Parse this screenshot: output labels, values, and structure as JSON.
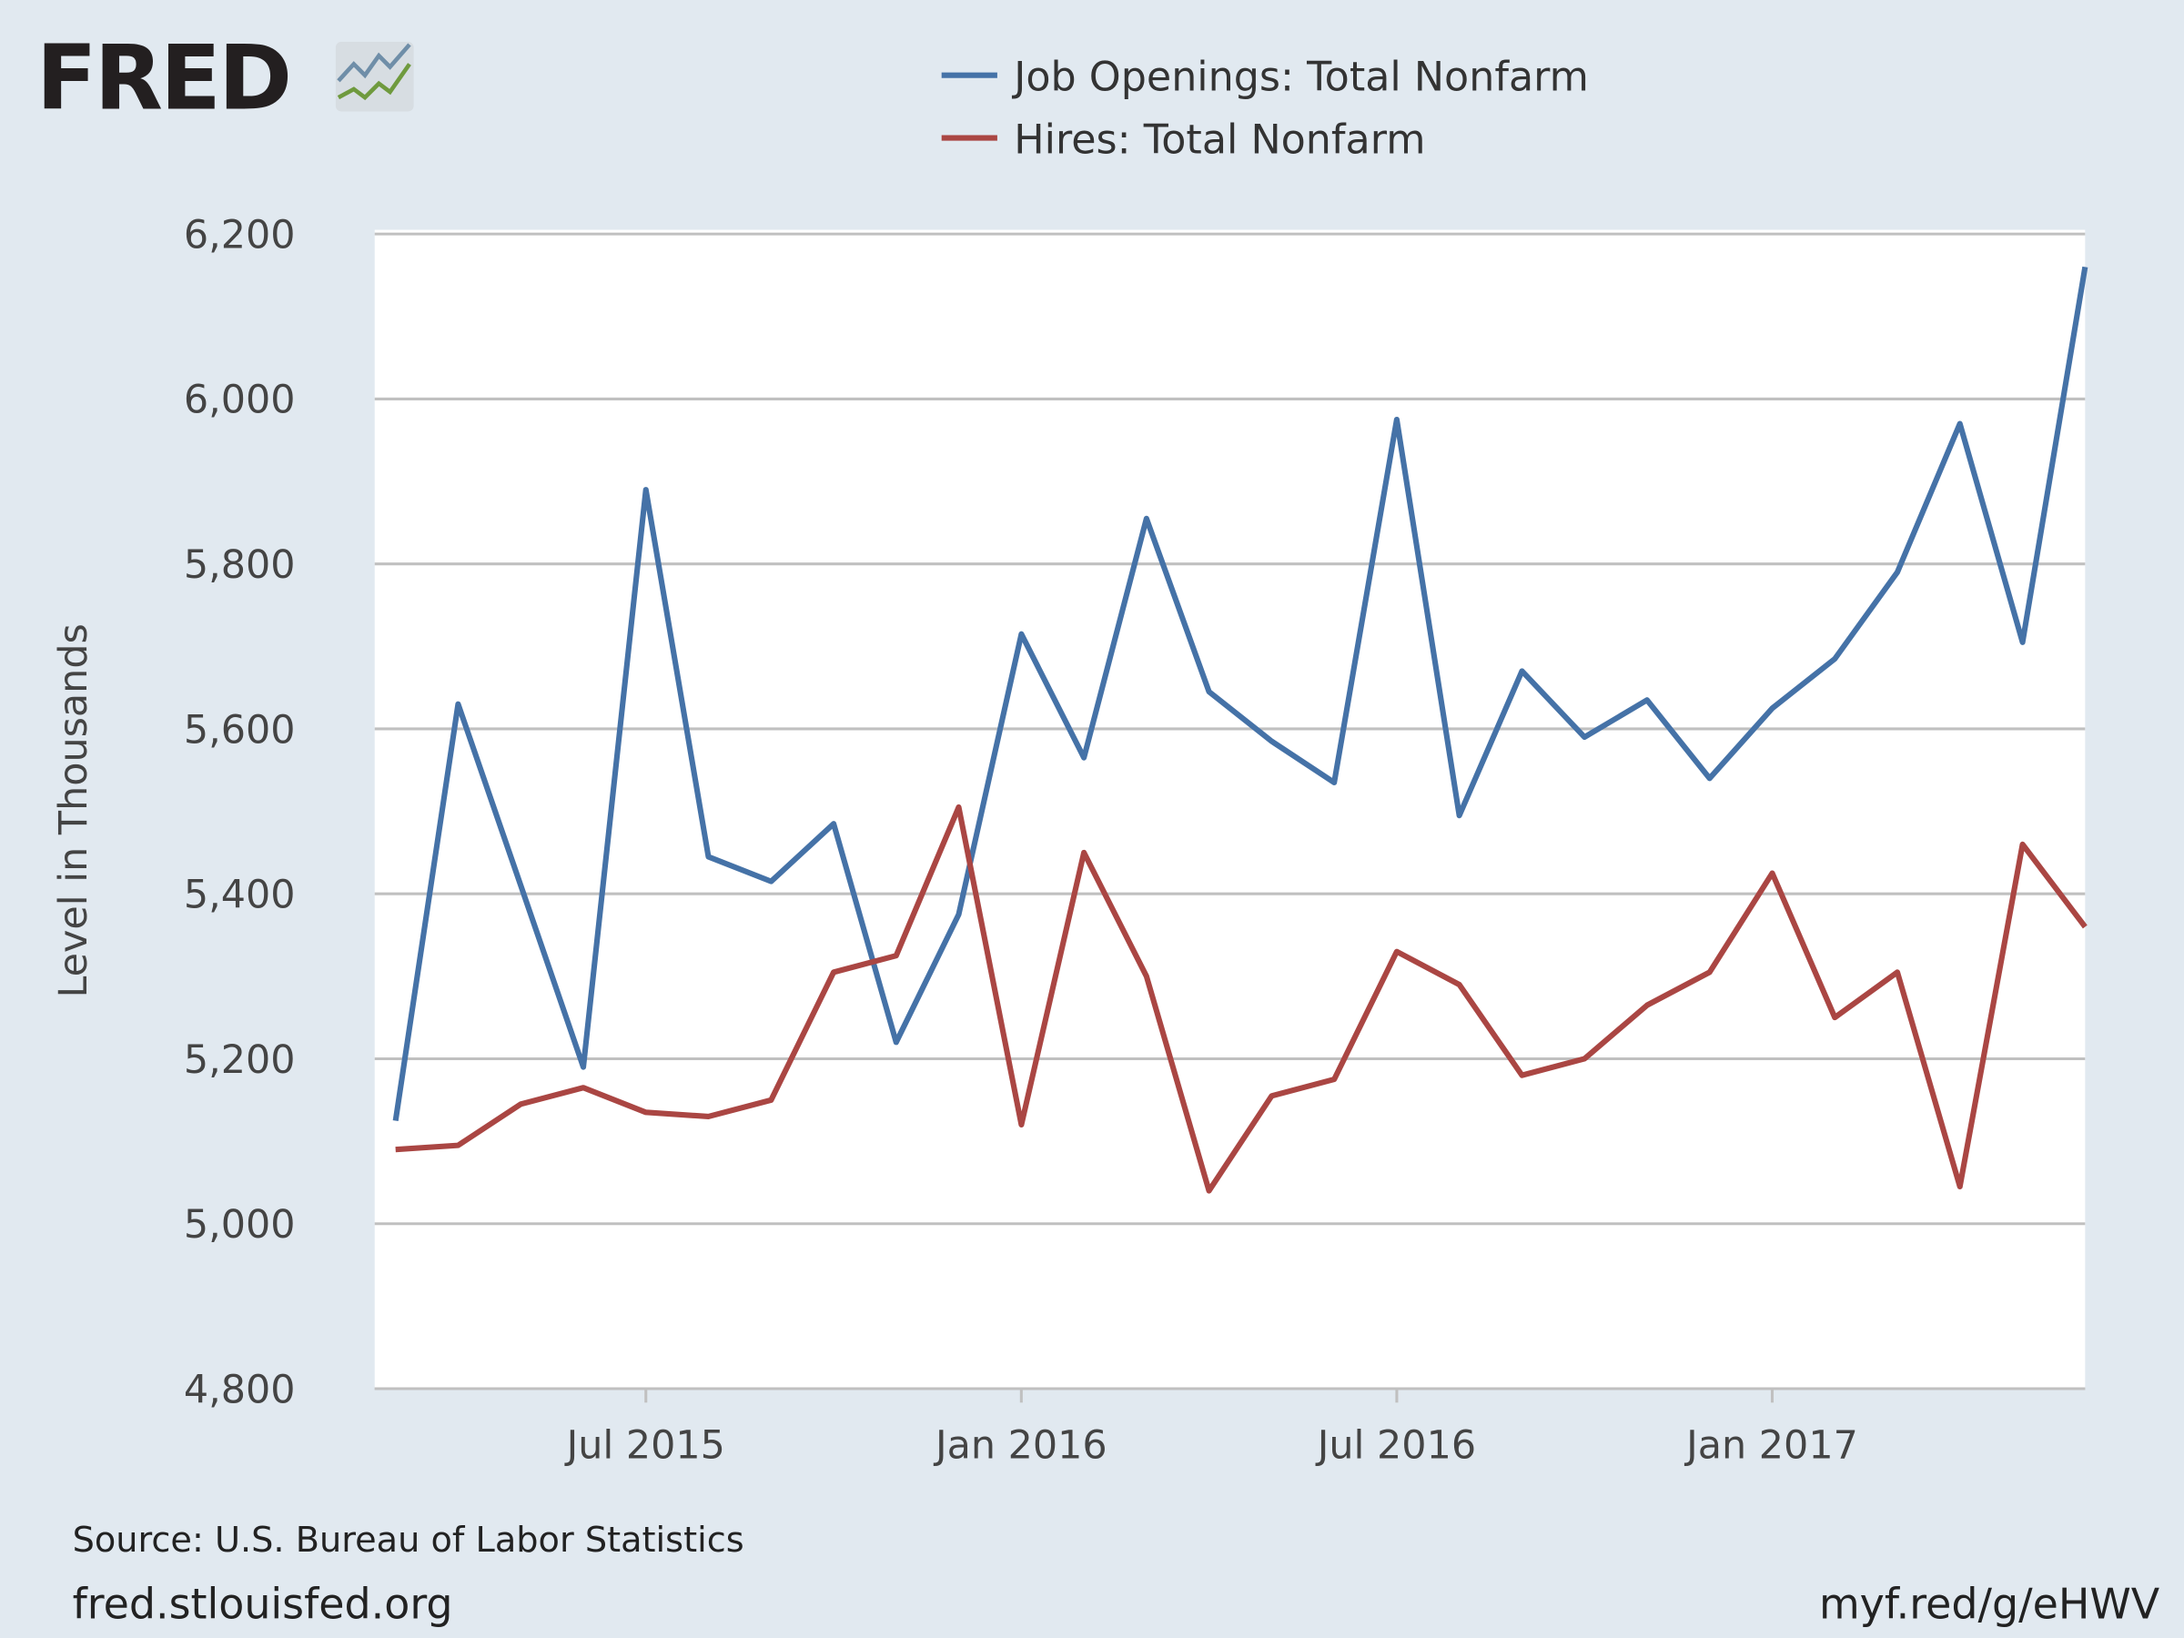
{
  "header": {
    "logo": "FRED"
  },
  "chart_data": {
    "type": "line",
    "y_label": "Level in Thousands",
    "x": [
      "2015-03",
      "2015-04",
      "2015-05",
      "2015-06",
      "2015-07",
      "2015-08",
      "2015-09",
      "2015-10",
      "2015-11",
      "2015-12",
      "2016-01",
      "2016-02",
      "2016-03",
      "2016-04",
      "2016-05",
      "2016-06",
      "2016-07",
      "2016-08",
      "2016-09",
      "2016-10",
      "2016-11",
      "2016-12",
      "2017-01",
      "2017-02",
      "2017-03",
      "2017-04",
      "2017-05",
      "2017-06"
    ],
    "series": [
      {
        "name": "Job Openings: Total Nonfarm",
        "color": "#4572a7",
        "values": [
          5125,
          5630,
          5410,
          5190,
          5890,
          5445,
          5415,
          5485,
          5220,
          5375,
          5715,
          5565,
          5855,
          5645,
          5585,
          5535,
          5975,
          5495,
          5670,
          5590,
          5635,
          5540,
          5625,
          5685,
          5790,
          5970,
          5705,
          6160
        ]
      },
      {
        "name": "Hires: Total Nonfarm",
        "color": "#aa4643",
        "values": [
          5090,
          5095,
          5145,
          5165,
          5135,
          5130,
          5150,
          5305,
          5325,
          5505,
          5120,
          5450,
          5300,
          5040,
          5155,
          5175,
          5330,
          5290,
          5180,
          5200,
          5265,
          5305,
          5425,
          5250,
          5305,
          5045,
          5460,
          5360
        ]
      }
    ],
    "xlim": [
      "2015-03",
      "2017-06"
    ],
    "xticks": [
      {
        "value": "2015-07",
        "label": "Jul 2015"
      },
      {
        "value": "2016-01",
        "label": "Jan 2016"
      },
      {
        "value": "2016-07",
        "label": "Jul 2016"
      },
      {
        "value": "2017-01",
        "label": "Jan 2017"
      }
    ],
    "ylim": [
      4800,
      6200
    ],
    "yticks": [
      {
        "value": 4800,
        "label": "4,800"
      },
      {
        "value": 5000,
        "label": "5,000"
      },
      {
        "value": 5200,
        "label": "5,200"
      },
      {
        "value": 5400,
        "label": "5,400"
      },
      {
        "value": 5600,
        "label": "5,600"
      },
      {
        "value": 5800,
        "label": "5,800"
      },
      {
        "value": 6000,
        "label": "6,000"
      },
      {
        "value": 6200,
        "label": "6,200"
      }
    ],
    "grid": true,
    "legend": "top"
  },
  "footer": {
    "source": "Source: U.S. Bureau of Labor Statistics",
    "site": "fred.stlouisfed.org",
    "link": "myf.red/g/eHWV"
  }
}
